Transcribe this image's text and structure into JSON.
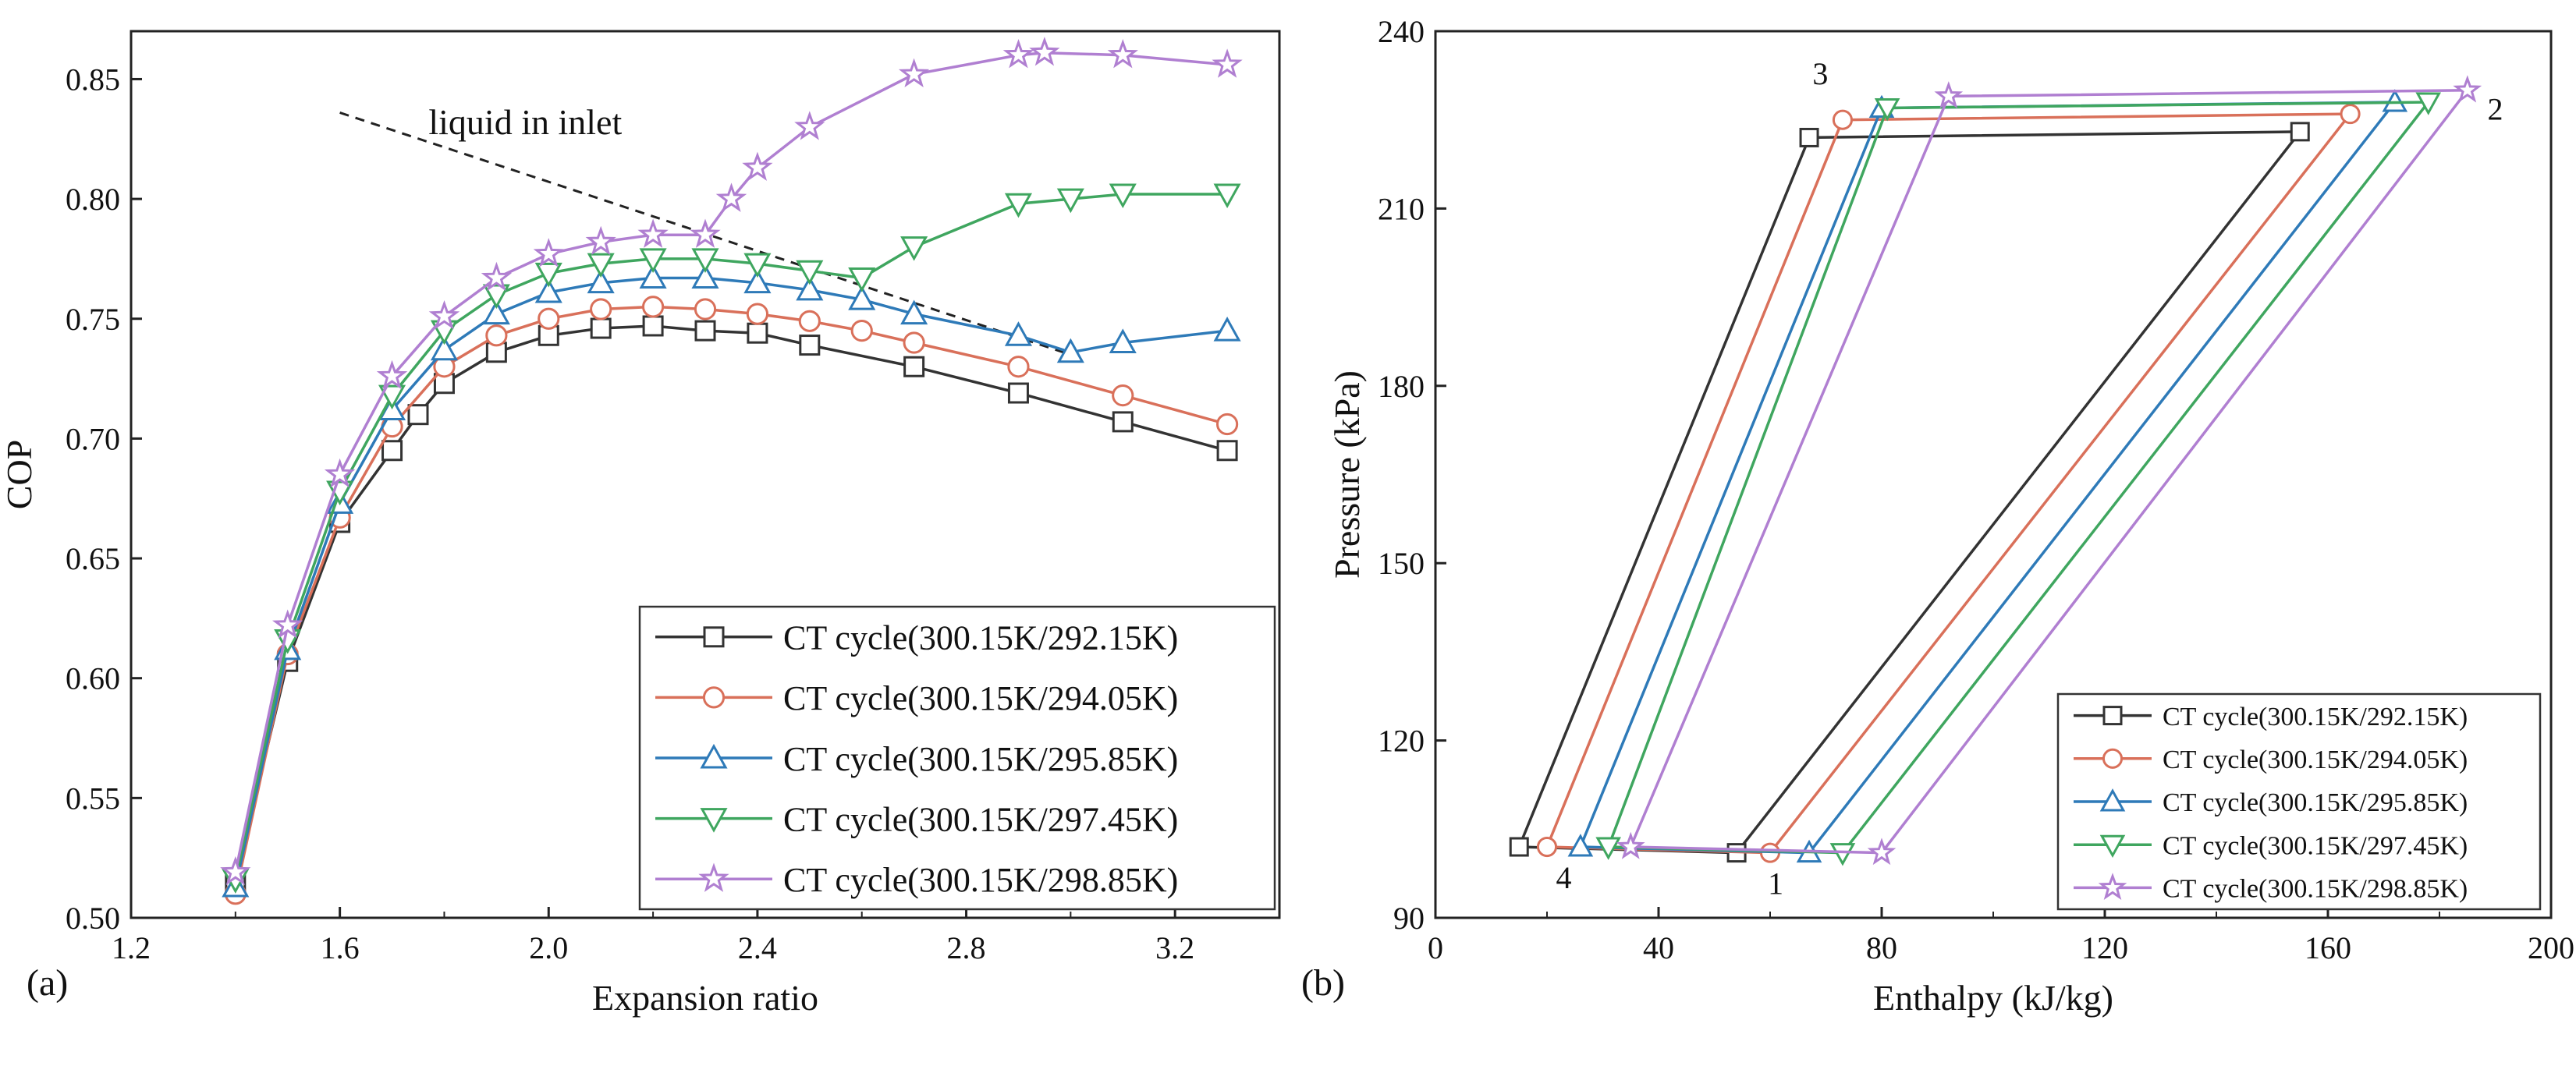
{
  "chart_data": [
    {
      "type": "line",
      "panel_label": "(a)",
      "xlabel": "Expansion ratio",
      "ylabel": "COP",
      "xlim": [
        1.2,
        3.4
      ],
      "ylim": [
        0.5,
        0.87
      ],
      "xticks": [
        1.2,
        1.6,
        2.0,
        2.4,
        2.8,
        3.2
      ],
      "yticks": [
        0.5,
        0.55,
        0.6,
        0.65,
        0.7,
        0.75,
        0.8,
        0.85
      ],
      "xtick_labels": [
        "1.2",
        "1.6",
        "2.0",
        "2.4",
        "2.8",
        "3.2"
      ],
      "ytick_labels": [
        "0.50",
        "0.55",
        "0.60",
        "0.65",
        "0.70",
        "0.75",
        "0.80",
        "0.85"
      ],
      "grid": false,
      "legend_position": "bottom-right",
      "annotation": {
        "text": "liquid in inlet",
        "line": [
          [
            1.6,
            0.836
          ],
          [
            3.0,
            0.735
          ]
        ]
      },
      "series": [
        {
          "name": "CT cycle(300.15K/292.15K)",
          "color": "#333333",
          "marker": "square",
          "x": [
            1.4,
            1.5,
            1.6,
            1.7,
            1.75,
            1.8,
            1.9,
            2.0,
            2.1,
            2.2,
            2.3,
            2.4,
            2.5,
            2.7,
            2.9,
            3.1,
            3.3
          ],
          "y": [
            0.515,
            0.607,
            0.665,
            0.695,
            0.71,
            0.723,
            0.736,
            0.743,
            0.746,
            0.747,
            0.745,
            0.744,
            0.739,
            0.73,
            0.719,
            0.707,
            0.695
          ]
        },
        {
          "name": "CT cycle(300.15K/294.05K)",
          "color": "#d9705a",
          "marker": "circle",
          "x": [
            1.4,
            1.5,
            1.6,
            1.7,
            1.8,
            1.9,
            2.0,
            2.1,
            2.2,
            2.3,
            2.4,
            2.5,
            2.6,
            2.7,
            2.9,
            3.1,
            3.3
          ],
          "y": [
            0.51,
            0.61,
            0.667,
            0.705,
            0.73,
            0.743,
            0.75,
            0.754,
            0.755,
            0.754,
            0.752,
            0.749,
            0.745,
            0.74,
            0.73,
            0.718,
            0.706
          ]
        },
        {
          "name": "CT cycle(300.15K/295.85K)",
          "color": "#2e7ab8",
          "marker": "triangle-up",
          "x": [
            1.4,
            1.5,
            1.6,
            1.7,
            1.8,
            1.9,
            2.0,
            2.1,
            2.2,
            2.3,
            2.4,
            2.5,
            2.6,
            2.7,
            2.9,
            3.0,
            3.1,
            3.3
          ],
          "y": [
            0.513,
            0.612,
            0.673,
            0.712,
            0.737,
            0.752,
            0.761,
            0.765,
            0.767,
            0.767,
            0.765,
            0.762,
            0.758,
            0.752,
            0.743,
            0.736,
            0.74,
            0.745
          ]
        },
        {
          "name": "CT cycle(300.15K/297.45K)",
          "color": "#3fa65f",
          "marker": "triangle-down",
          "x": [
            1.4,
            1.5,
            1.6,
            1.7,
            1.8,
            1.9,
            2.0,
            2.1,
            2.2,
            2.3,
            2.4,
            2.5,
            2.6,
            2.7,
            2.9,
            3.0,
            3.1,
            3.3
          ],
          "y": [
            0.516,
            0.616,
            0.678,
            0.718,
            0.745,
            0.76,
            0.769,
            0.773,
            0.775,
            0.775,
            0.773,
            0.77,
            0.767,
            0.78,
            0.798,
            0.8,
            0.802,
            0.802
          ]
        },
        {
          "name": "CT cycle(300.15K/298.85K)",
          "color": "#b07fd1",
          "marker": "star",
          "x": [
            1.4,
            1.5,
            1.6,
            1.7,
            1.8,
            1.9,
            2.0,
            2.1,
            2.2,
            2.3,
            2.35,
            2.4,
            2.5,
            2.7,
            2.9,
            2.95,
            3.1,
            3.3
          ],
          "y": [
            0.519,
            0.622,
            0.685,
            0.726,
            0.751,
            0.767,
            0.777,
            0.782,
            0.785,
            0.785,
            0.8,
            0.813,
            0.83,
            0.852,
            0.86,
            0.861,
            0.86,
            0.856
          ]
        }
      ]
    },
    {
      "type": "line",
      "panel_label": "(b)",
      "xlabel": "Enthalpy (kJ/kg)",
      "ylabel": "Pressure (kPa)",
      "xlim": [
        0,
        200
      ],
      "ylim": [
        90,
        240
      ],
      "xticks": [
        0,
        40,
        80,
        120,
        160,
        200
      ],
      "yticks": [
        90,
        120,
        150,
        180,
        210,
        240
      ],
      "xtick_labels": [
        "0",
        "40",
        "80",
        "120",
        "160",
        "200"
      ],
      "ytick_labels": [
        "90",
        "120",
        "150",
        "180",
        "210",
        "240"
      ],
      "grid": false,
      "legend_position": "bottom-right",
      "point_labels": [
        {
          "text": "1",
          "x": 61,
          "y": 94
        },
        {
          "text": "2",
          "x": 190,
          "y": 225
        },
        {
          "text": "3",
          "x": 69,
          "y": 231
        },
        {
          "text": "4",
          "x": 23,
          "y": 95
        }
      ],
      "series": [
        {
          "name": "CT cycle(300.15K/292.15K)",
          "color": "#333333",
          "marker": "square",
          "x": [
            54,
            155,
            67,
            15,
            54
          ],
          "y": [
            101,
            223,
            222,
            102,
            101
          ]
        },
        {
          "name": "CT cycle(300.15K/294.05K)",
          "color": "#d9705a",
          "marker": "circle",
          "x": [
            60,
            164,
            73,
            20,
            60
          ],
          "y": [
            101,
            226,
            225,
            102,
            101
          ]
        },
        {
          "name": "CT cycle(300.15K/295.85K)",
          "color": "#2e7ab8",
          "marker": "triangle-up",
          "x": [
            67,
            172,
            80,
            26,
            67
          ],
          "y": [
            101,
            228,
            227,
            102,
            101
          ]
        },
        {
          "name": "CT cycle(300.15K/297.45K)",
          "color": "#3fa65f",
          "marker": "triangle-down",
          "x": [
            73,
            178,
            81,
            31,
            73
          ],
          "y": [
            101,
            228,
            227,
            102,
            101
          ]
        },
        {
          "name": "CT cycle(300.15K/298.85K)",
          "color": "#b07fd1",
          "marker": "star",
          "x": [
            80,
            185,
            92,
            35,
            80
          ],
          "y": [
            101,
            230,
            229,
            102,
            101
          ]
        }
      ]
    }
  ]
}
